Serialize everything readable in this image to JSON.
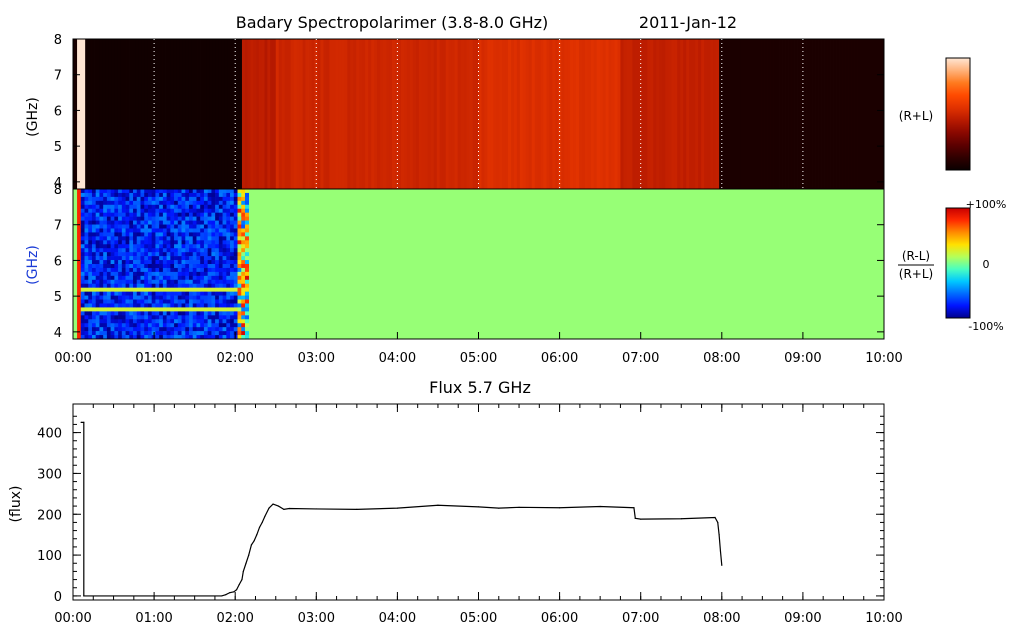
{
  "chart_data": [
    {
      "type": "heatmap",
      "title": "Badary Spectropolarimer (3.8-8.0 GHz)",
      "date": "2011-Jan-12",
      "ylabel": "(GHz)",
      "y_ticks": [
        "4",
        "5",
        "6",
        "7",
        "8"
      ],
      "ylim": [
        3.8,
        8.0
      ],
      "quantity_label": "(R+L)",
      "xlim": [
        "00:00",
        "10:00"
      ],
      "time_segments": [
        {
          "from": "00:00",
          "to": "00:03",
          "level": 0.04
        },
        {
          "from": "00:03",
          "to": "00:09",
          "level": 1.0
        },
        {
          "from": "00:09",
          "to": "02:05",
          "level": 0.02
        },
        {
          "from": "02:05",
          "to": "02:30",
          "level": 0.45
        },
        {
          "from": "02:30",
          "to": "05:00",
          "level": 0.5
        },
        {
          "from": "05:00",
          "to": "06:45",
          "level": 0.54
        },
        {
          "from": "06:45",
          "to": "07:58",
          "level": 0.47
        },
        {
          "from": "07:58",
          "to": "10:00",
          "level": 0.05
        }
      ],
      "colorbar": [
        "#ffe6d4",
        "#ffb27a",
        "#ff7a1e",
        "#ff4a00",
        "#e13200",
        "#b81a00",
        "#8a0800",
        "#5c0000",
        "#300000",
        "#0a0000"
      ]
    },
    {
      "type": "heatmap",
      "ylabel": "(GHz)",
      "y_ticks": [
        "4",
        "5",
        "6",
        "7",
        "8"
      ],
      "ylim": [
        3.8,
        8.0
      ],
      "quantity_numerator": "(R-L)",
      "quantity_denominator": "(R+L)",
      "xlim": [
        "00:00",
        "10:00"
      ],
      "x_ticks": [
        "00:00",
        "01:00",
        "02:00",
        "03:00",
        "04:00",
        "05:00",
        "06:00",
        "07:00",
        "08:00",
        "09:00",
        "10:00"
      ],
      "colorbar_labels": [
        "+100%",
        "0",
        "-100%"
      ],
      "colorbar": [
        "#c80000",
        "#ff2a00",
        "#ff8c00",
        "#ffe100",
        "#b4ff5a",
        "#4affc0",
        "#00c8ff",
        "#006cff",
        "#0014ff",
        "#00008c"
      ],
      "background_value": 0.05,
      "noisy_interval": [
        "00:03",
        "02:10"
      ]
    },
    {
      "type": "line",
      "title": "Flux 5.7 GHz",
      "ylabel": "(flux)",
      "y_ticks": [
        0,
        100,
        200,
        300,
        400
      ],
      "ylim": [
        -10,
        470
      ],
      "xlim": [
        "00:00",
        "10:00"
      ],
      "x_ticks": [
        "00:00",
        "01:00",
        "02:00",
        "03:00",
        "04:00",
        "05:00",
        "06:00",
        "07:00",
        "08:00",
        "09:00",
        "10:00"
      ],
      "series": [
        {
          "x": [
            "00:06",
            "00:08",
            "00:08",
            "00:30",
            "01:00",
            "01:30",
            "01:50",
            "01:53",
            "01:56",
            "01:59",
            "02:01",
            "02:03",
            "02:05",
            "02:06",
            "02:08",
            "02:10",
            "02:12",
            "02:14",
            "02:16",
            "02:18",
            "02:20",
            "02:22",
            "02:25",
            "02:28",
            "02:32",
            "02:36",
            "02:40",
            "03:00",
            "03:30",
            "04:00",
            "04:30",
            "05:00",
            "05:15",
            "05:30",
            "06:00",
            "06:30",
            "06:55",
            "06:56",
            "07:00",
            "07:30",
            "07:55",
            "07:57",
            "07:58",
            "07:59",
            "08:00"
          ],
          "y": [
            425,
            425,
            0,
            0,
            0,
            0,
            0,
            3,
            8,
            10,
            15,
            28,
            40,
            60,
            80,
            100,
            125,
            135,
            150,
            168,
            180,
            195,
            215,
            225,
            220,
            212,
            214,
            213,
            212,
            215,
            222,
            218,
            215,
            217,
            216,
            219,
            216,
            190,
            188,
            189,
            192,
            180,
            150,
            110,
            75
          ]
        }
      ]
    }
  ]
}
